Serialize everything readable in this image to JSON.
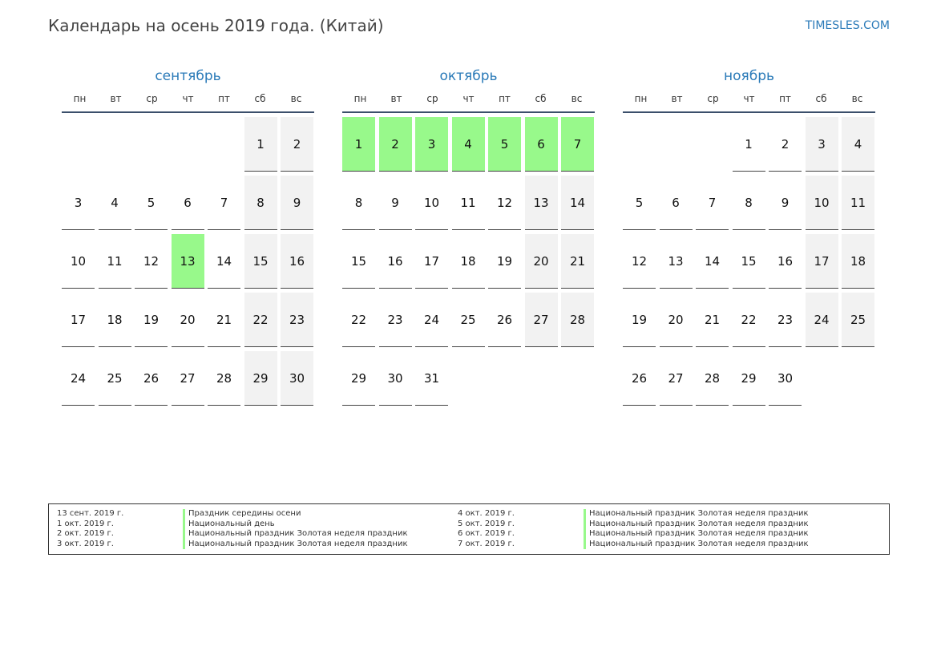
{
  "header": {
    "title": "Календарь на осень 2019 года. (Китай)",
    "site": "TIMESLES.COM"
  },
  "colors": {
    "holiday": "#98f98b",
    "weekend": "#f2f2f2",
    "accent": "#2a7ab8"
  },
  "weekdays": [
    "пн",
    "вт",
    "ср",
    "чт",
    "пт",
    "сб",
    "вс"
  ],
  "months": [
    {
      "name": "сентябрь",
      "first_weekday": 6,
      "days_in_month": 30,
      "holidays": [
        13
      ]
    },
    {
      "name": "октябрь",
      "first_weekday": 1,
      "days_in_month": 31,
      "holidays": [
        1,
        2,
        3,
        4,
        5,
        6,
        7
      ]
    },
    {
      "name": "ноябрь",
      "first_weekday": 4,
      "days_in_month": 30,
      "holidays": []
    }
  ],
  "legend": [
    {
      "date": "13 сент. 2019 г.",
      "desc": "Праздник середины осени"
    },
    {
      "date": "1 окт. 2019 г.",
      "desc": "Национальный день"
    },
    {
      "date": "2 окт. 2019 г.",
      "desc": "Национальный праздник Золотая неделя праздник"
    },
    {
      "date": "3 окт. 2019 г.",
      "desc": "Национальный праздник Золотая неделя праздник"
    },
    {
      "date": "4 окт. 2019 г.",
      "desc": "Национальный праздник Золотая неделя праздник"
    },
    {
      "date": "5 окт. 2019 г.",
      "desc": "Национальный праздник Золотая неделя праздник"
    },
    {
      "date": "6 окт. 2019 г.",
      "desc": "Национальный праздник Золотая неделя праздник"
    },
    {
      "date": "7 окт. 2019 г.",
      "desc": "Национальный праздник Золотая неделя праздник"
    }
  ]
}
